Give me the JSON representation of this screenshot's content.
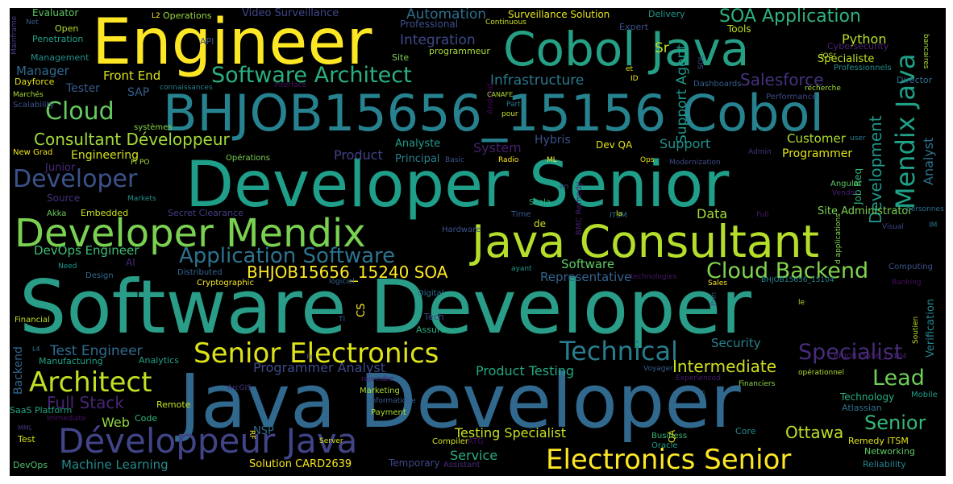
{
  "words": [
    {
      "text": "Software Developer",
      "color": "#2a9d88"
    },
    {
      "text": "Java Developer",
      "color": "#31688e"
    },
    {
      "text": "Developer Senior",
      "color": "#1f9e89"
    },
    {
      "text": "BHJOB15656_15156 Cobol",
      "color": "#26828e"
    },
    {
      "text": "Engineer",
      "color": "#fde725"
    },
    {
      "text": "Cobol Java",
      "color": "#25a085"
    },
    {
      "text": "Java Consultant",
      "color": "#b5de2b"
    },
    {
      "text": "Developer Mendix",
      "color": "#7ad151"
    },
    {
      "text": "Développeur Java",
      "color": "#414487"
    },
    {
      "text": "Electronics Senior",
      "color": "#fde725"
    },
    {
      "text": "Senior Electronics",
      "color": "#dde318"
    },
    {
      "text": "Architect",
      "color": "#c2df23"
    },
    {
      "text": "Software Architect",
      "color": "#2ab07f"
    },
    {
      "text": "Application Software",
      "color": "#2c728e"
    },
    {
      "text": "Technical",
      "color": "#287d8e"
    },
    {
      "text": "Mendix Java",
      "color": "#1fa187"
    },
    {
      "text": "Cloud Backend",
      "color": "#7fd34e"
    },
    {
      "text": "Developer",
      "color": "#3b528b"
    },
    {
      "text": "Cloud",
      "color": "#65cb5e"
    },
    {
      "text": "Specialist",
      "color": "#472c7a"
    },
    {
      "text": "Lead",
      "color": "#6ece58"
    },
    {
      "text": "Senior",
      "color": "#35b779"
    },
    {
      "text": "SOA Application",
      "color": "#2db27d"
    },
    {
      "text": "Consultant Développeur",
      "color": "#a2da37"
    },
    {
      "text": "BHJOB15656_15240 SOA",
      "color": "#fde725"
    },
    {
      "text": "Full Stack",
      "color": "#482576"
    },
    {
      "text": "Ottawa",
      "color": "#bddf26"
    },
    {
      "text": "Salesforce",
      "color": "#46327e"
    },
    {
      "text": "Intermediate",
      "color": "#d0e11c"
    },
    {
      "text": "Development",
      "color": "#1f968b"
    },
    {
      "text": "Test Engineer",
      "color": "#2f6c8e"
    },
    {
      "text": "Integration",
      "color": "#3e4989"
    },
    {
      "text": "Automation",
      "color": "#2e6f8e"
    },
    {
      "text": "Infrastructure",
      "color": "#2a788e"
    },
    {
      "text": "Support Agent",
      "color": "#1f988b"
    },
    {
      "text": "Testing Specialist",
      "color": "#c8e020"
    },
    {
      "text": "Product Testing",
      "color": "#22a884"
    },
    {
      "text": "Programmer Analyst",
      "color": "#3e4a89"
    },
    {
      "text": "Service",
      "color": "#29af7f"
    },
    {
      "text": "Representative",
      "color": "#33638d"
    },
    {
      "text": "Software",
      "color": "#5ec962"
    },
    {
      "text": "DevOps Engineer",
      "color": "#3dbc74"
    },
    {
      "text": "Machine Learning",
      "color": "#238a8d"
    },
    {
      "text": "Front End",
      "color": "#d8e219"
    },
    {
      "text": "Manager",
      "color": "#30698e"
    },
    {
      "text": "Python",
      "color": "#b8de29"
    },
    {
      "text": "Analyst",
      "color": "#2c738e"
    },
    {
      "text": "Customer",
      "color": "#addc30"
    },
    {
      "text": "Support",
      "color": "#20928c"
    },
    {
      "text": "Product",
      "color": "#404387"
    },
    {
      "text": "System",
      "color": "#481f70"
    },
    {
      "text": "Security",
      "color": "#26818e"
    },
    {
      "text": "Verification",
      "color": "#24868e"
    },
    {
      "text": "Backend",
      "color": "#31678e"
    },
    {
      "text": "Web",
      "color": "#90d743"
    },
    {
      "text": "Data",
      "color": "#a5db36"
    },
    {
      "text": "Sr",
      "color": "#c0df25"
    },
    {
      "text": "SAP",
      "color": "#355f8d"
    },
    {
      "text": "Tester",
      "color": "#38598c"
    },
    {
      "text": "Engineering",
      "color": "#d2e21b"
    },
    {
      "text": "Junior",
      "color": "#482979"
    },
    {
      "text": "Hybris",
      "color": "#3b518b"
    },
    {
      "text": "Analyste",
      "color": "#1e9b8a"
    },
    {
      "text": "Principal",
      "color": "#27808e"
    },
    {
      "text": "Dev QA",
      "color": "#e5e419"
    },
    {
      "text": "Programmer",
      "color": "#e2e418"
    },
    {
      "text": "Job Req",
      "color": "#32b67a"
    },
    {
      "text": "Spécialiste",
      "color": "#c5e021"
    },
    {
      "text": "Tools",
      "color": "#bade28"
    },
    {
      "text": "Surveillance Solution",
      "color": "#e7e419"
    },
    {
      "text": "Video Surveillance",
      "color": "#3f4788"
    },
    {
      "text": "Operations",
      "color": "#9bd93c"
    },
    {
      "text": "Evaluator",
      "color": "#5cc863"
    },
    {
      "text": "Penetration",
      "color": "#20a386"
    },
    {
      "text": "Management",
      "color": "#21918c"
    },
    {
      "text": "Open",
      "color": "#b2dd2d"
    },
    {
      "text": "Professional",
      "color": "#3b518b"
    },
    {
      "text": "programmeur",
      "color": "#a8db34"
    },
    {
      "text": "Site",
      "color": "#7cd250"
    },
    {
      "text": "Expert",
      "color": "#3c4f8a"
    },
    {
      "text": "Delivery",
      "color": "#1f948c"
    },
    {
      "text": "Cybersecurity",
      "color": "#482374"
    },
    {
      "text": "Professionnels",
      "color": "#228d8d"
    },
    {
      "text": "Director",
      "color": "#2e6e8e"
    },
    {
      "text": "Dashboards",
      "color": "#365c8d"
    },
    {
      "text": "Performance",
      "color": "#3f4889"
    },
    {
      "text": "Site Administrator",
      "color": "#7ad151"
    },
    {
      "text": "Angular",
      "color": "#5ac864"
    },
    {
      "text": "Scalability",
      "color": "#3a538b"
    },
    {
      "text": "systèmes",
      "color": "#86d549"
    },
    {
      "text": "New Grad",
      "color": "#f1e51d"
    },
    {
      "text": "Opérations",
      "color": "#7ad151"
    },
    {
      "text": "Embedded",
      "color": "#cde11d"
    },
    {
      "text": "Source",
      "color": "#46307e"
    },
    {
      "text": "Akka",
      "color": "#6ccd5a"
    },
    {
      "text": "Secret Clearance",
      "color": "#423f85"
    },
    {
      "text": "AI",
      "color": "#482878"
    },
    {
      "text": "Cryptographic",
      "color": "#f8e621"
    },
    {
      "text": "Design",
      "color": "#2f6b8e"
    },
    {
      "text": "Distributed",
      "color": "#33638d"
    },
    {
      "text": "CS",
      "color": "#fde725"
    },
    {
      "text": "Tech",
      "color": "#3f4788"
    },
    {
      "text": "Digital",
      "color": "#2d718e"
    },
    {
      "text": "Assurance",
      "color": "#27ad81"
    },
    {
      "text": "Financial",
      "color": "#c0df25"
    },
    {
      "text": "Analytics",
      "color": "#1fa187"
    },
    {
      "text": "Manufacturing",
      "color": "#20a386"
    },
    {
      "text": "Remote",
      "color": "#c5e021"
    },
    {
      "text": "Code",
      "color": "#31b57b"
    },
    {
      "text": "SaaS Platform",
      "color": "#22a785"
    },
    {
      "text": "Marketing",
      "color": "#addc30"
    },
    {
      "text": "Payment",
      "color": "#addc30"
    },
    {
      "text": "Business",
      "color": "#3aba76"
    },
    {
      "text": "Oracle",
      "color": "#1f9e89"
    },
    {
      "text": "Atlassian",
      "color": "#2d708e"
    },
    {
      "text": "Technology",
      "color": "#29af7f"
    },
    {
      "text": "Networking",
      "color": "#5ec962"
    },
    {
      "text": "Reliability",
      "color": "#25848e"
    },
    {
      "text": "Mobile",
      "color": "#1e9c89"
    },
    {
      "text": "Remedy ITSM",
      "color": "#e5e419"
    },
    {
      "text": "Solution CARD2639",
      "color": "#f4e61e"
    },
    {
      "text": "Temporary",
      "color": "#3e4989"
    },
    {
      "text": "Assistant",
      "color": "#472c7a"
    },
    {
      "text": "DevOps",
      "color": "#4ac16d"
    },
    {
      "text": "Test",
      "color": "#d5e21a"
    },
    {
      "text": "Compiler",
      "color": "#d2e21b"
    },
    {
      "text": "ATG",
      "color": "#470e61"
    },
    {
      "text": "Server",
      "color": "#dde318"
    },
    {
      "text": "NSP",
      "color": "#306a8e"
    },
    {
      "text": "Core",
      "color": "#23898e"
    },
    {
      "text": "Time",
      "color": "#375b8d"
    },
    {
      "text": "Scala",
      "color": "#2fb47c"
    },
    {
      "text": "Hardware",
      "color": "#3b528b"
    },
    {
      "text": "Basic",
      "color": "#3a538b"
    },
    {
      "text": "Radio",
      "color": "#fbe723"
    },
    {
      "text": "ML",
      "color": "#f6e620"
    },
    {
      "text": "Ops",
      "color": "#e2e418"
    },
    {
      "text": "Modernization",
      "color": "#3e4a89"
    },
    {
      "text": "BMC Remedy",
      "color": "#481c6e"
    },
    {
      "text": "ITSM",
      "color": "#2a768e"
    },
    {
      "text": "Android",
      "color": "#450559"
    },
    {
      "text": "Markets",
      "color": "#21918c"
    },
    {
      "text": "Need",
      "color": "#1f968b"
    },
    {
      "text": "Full",
      "color": "#48186a"
    },
    {
      "text": "Visual",
      "color": "#3f4788"
    },
    {
      "text": "Computing",
      "color": "#3b528b"
    },
    {
      "text": "Banking",
      "color": "#470d60"
    },
    {
      "text": "Sales",
      "color": "#f8e621"
    },
    {
      "text": "Soutien",
      "color": "#c0df25"
    },
    {
      "text": "Voyager",
      "color": "#375b8d"
    },
    {
      "text": "Experienced",
      "color": "#481b6d"
    },
    {
      "text": "Financiers",
      "color": "#8bd646"
    },
    {
      "text": "opérationnel",
      "color": "#addc30"
    },
    {
      "text": "bancaires",
      "color": "#a8db34"
    },
    {
      "text": "personnes",
      "color": "#2e6e8e"
    },
    {
      "text": "iOS",
      "color": "#c2df23"
    },
    {
      "text": "SQL",
      "color": "#3b528b"
    },
    {
      "text": "user",
      "color": "#2a778e"
    },
    {
      "text": "Admin",
      "color": "#46337f"
    },
    {
      "text": "recherche",
      "color": "#a5db36"
    },
    {
      "text": "connaissances",
      "color": "#26828e"
    },
    {
      "text": "interface",
      "color": "#481467"
    },
    {
      "text": "Marchés",
      "color": "#a8db34"
    },
    {
      "text": "Dayforce",
      "color": "#e2e418"
    },
    {
      "text": "Mainframe",
      "color": "#433e85"
    },
    {
      "text": "Net",
      "color": "#375a8c"
    },
    {
      "text": "API",
      "color": "#3b528b"
    },
    {
      "text": "L2",
      "color": "#fde725"
    },
    {
      "text": "Continuous",
      "color": "#c8e020"
    },
    {
      "text": "Part",
      "color": "#2a788e"
    },
    {
      "text": "CANAFE",
      "color": "#addc30"
    },
    {
      "text": "pour",
      "color": "#c2df23"
    },
    {
      "text": "en",
      "color": "#3e4989"
    },
    {
      "text": "ayant",
      "color": "#1f958b"
    },
    {
      "text": "logiciel",
      "color": "#33638d"
    },
    {
      "text": "technologies",
      "color": "#481769"
    },
    {
      "text": "d applications",
      "color": "#7fd34e"
    },
    {
      "text": "BHJOB15656_15104",
      "color": "#25858e"
    },
    {
      "text": "BHJOB15656_15104",
      "color": "#482173"
    },
    {
      "text": "Prin",
      "color": "#3b528b"
    },
    {
      "text": "Vendor",
      "color": "#481f70"
    },
    {
      "text": "ArcGIS",
      "color": "#453781"
    },
    {
      "text": "rejoindre",
      "color": "#482475"
    },
    {
      "text": "informatique",
      "color": "#355e8d"
    },
    {
      "text": "Immediate",
      "color": "#471164"
    },
    {
      "text": "RF",
      "color": "#fde725"
    },
    {
      "text": "Level",
      "color": "#2e6f8e"
    },
    {
      "text": "de",
      "color": "#d0e11c"
    },
    {
      "text": "ID",
      "color": "#fde725"
    },
    {
      "text": "et",
      "color": "#dde318"
    },
    {
      "text": "la",
      "color": "#c8e020"
    },
    {
      "text": "Fr",
      "color": "#3e4989"
    },
    {
      "text": "le",
      "color": "#addc30"
    },
    {
      "text": "TI",
      "color": "#355e8d"
    },
    {
      "text": "QA",
      "color": "#d8e219"
    },
    {
      "text": "PI PO",
      "color": "#a8db34"
    },
    {
      "text": "IM",
      "color": "#2a788e"
    },
    {
      "text": "MML",
      "color": "#453781"
    },
    {
      "text": "L4",
      "color": "#2a788e"
    }
  ]
}
